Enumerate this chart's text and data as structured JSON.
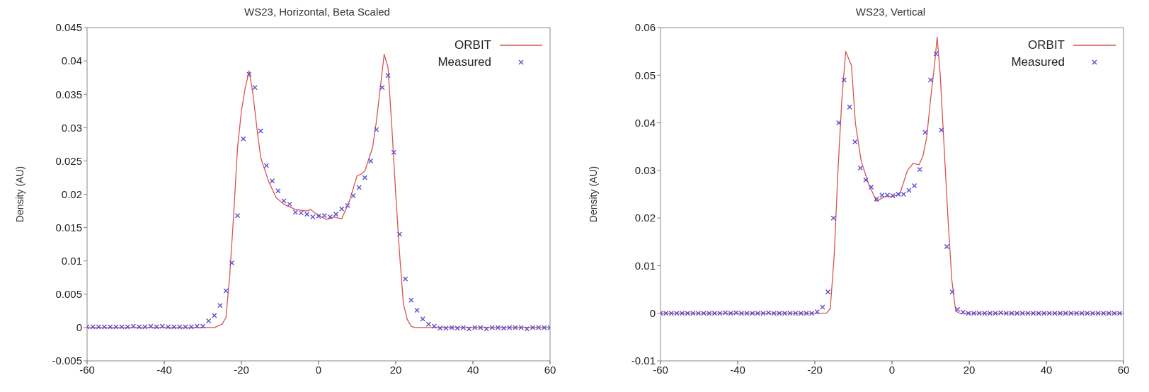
{
  "chart_data": [
    {
      "type": "line",
      "title": "WS23, Horizontal, Beta Scaled",
      "ylabel": "Density (AU)",
      "xlim": [
        -60,
        60
      ],
      "xticks": [
        -60,
        -40,
        -20,
        0,
        20,
        40,
        60
      ],
      "ylim": [
        -0.005,
        0.045
      ],
      "yticks": [
        -0.005,
        0,
        0.005,
        0.01,
        0.015,
        0.02,
        0.025,
        0.03,
        0.035,
        0.04,
        0.045
      ],
      "grid": false,
      "legend": "top right",
      "series": [
        {
          "name": "ORBIT",
          "color": "#d9534f",
          "x": [
            -60,
            -27,
            -25,
            -24,
            -23,
            -22,
            -21,
            -20,
            -19,
            -18,
            -17,
            -16,
            -15,
            -13,
            -11,
            -9,
            -6,
            -3,
            -2,
            -1,
            2,
            4,
            6,
            8,
            10,
            11,
            12,
            14,
            15,
            16,
            17,
            18,
            19,
            20,
            21,
            22,
            23,
            24,
            25,
            60
          ],
          "values": [
            0,
            0,
            0.0005,
            0.0015,
            0.008,
            0.017,
            0.027,
            0.0325,
            0.036,
            0.0385,
            0.035,
            0.03,
            0.0255,
            0.022,
            0.0195,
            0.0185,
            0.0177,
            0.0175,
            0.0177,
            0.0172,
            0.0162,
            0.0166,
            0.0163,
            0.019,
            0.0228,
            0.023,
            0.0235,
            0.027,
            0.031,
            0.036,
            0.041,
            0.039,
            0.03,
            0.02,
            0.011,
            0.0035,
            0.0012,
            0.0002,
            0,
            0
          ]
        },
        {
          "name": "Measured",
          "type": "scatter",
          "marker": "cross",
          "color": "#5b4fd0",
          "x": [
            -60,
            -58.5,
            -57,
            -55.5,
            -54,
            -52.5,
            -51,
            -49.5,
            -48,
            -46.5,
            -45,
            -43.5,
            -42,
            -40.5,
            -39,
            -37.5,
            -36,
            -34.5,
            -33,
            -31.5,
            -30,
            -28.5,
            -27,
            -25.5,
            -24,
            -22.5,
            -21,
            -19.5,
            -18,
            -16.5,
            -15,
            -13.5,
            -12,
            -10.5,
            -9,
            -7.5,
            -6,
            -4.5,
            -3,
            -1.5,
            0,
            1.5,
            3,
            4.5,
            6,
            7.5,
            9,
            10.5,
            12,
            13.5,
            15,
            16.5,
            18,
            19.5,
            21,
            22.5,
            24,
            25.5,
            27,
            28.5,
            30,
            31.5,
            33,
            34.5,
            36,
            37.5,
            39,
            40.5,
            42,
            43.5,
            45,
            46.5,
            48,
            49.5,
            51,
            52.5,
            54,
            55.5,
            57,
            58.5,
            60
          ],
          "values": [
            0.0001,
            0.0001,
            0.0001,
            0.0001,
            0.0001,
            0.0001,
            0.0001,
            0.0001,
            0.0002,
            0.0001,
            0.0001,
            0.0002,
            0.0001,
            0.0002,
            0.0001,
            0.0001,
            0.0001,
            0.0001,
            0.0001,
            0.0002,
            0.0002,
            0.001,
            0.0018,
            0.0033,
            0.0055,
            0.0097,
            0.0168,
            0.0283,
            0.038,
            0.036,
            0.0295,
            0.0243,
            0.022,
            0.0205,
            0.019,
            0.0185,
            0.0173,
            0.0172,
            0.017,
            0.0166,
            0.0167,
            0.0168,
            0.0166,
            0.017,
            0.0178,
            0.0183,
            0.0198,
            0.021,
            0.0225,
            0.025,
            0.0297,
            0.036,
            0.0378,
            0.0263,
            0.014,
            0.0073,
            0.0041,
            0.0026,
            0.0013,
            0.0005,
            0.0002,
            -0.0001,
            -0.0001,
            0,
            -0.0001,
            0,
            -0.0002,
            0,
            0,
            -0.0002,
            0,
            0,
            -0.0001,
            0,
            0,
            0,
            -0.0002,
            0,
            0,
            0,
            0
          ]
        }
      ]
    },
    {
      "type": "line",
      "title": "WS23, Vertical",
      "ylabel": "Density (AU)",
      "xlim": [
        -60,
        60
      ],
      "xticks": [
        -60,
        -40,
        -20,
        0,
        20,
        40,
        60
      ],
      "ylim": [
        -0.01,
        0.06
      ],
      "yticks": [
        -0.01,
        0,
        0.01,
        0.02,
        0.03,
        0.04,
        0.05,
        0.06
      ],
      "grid": false,
      "legend": "top right",
      "series": [
        {
          "name": "ORBIT",
          "color": "#d9534f",
          "x": [
            -60,
            -17,
            -16,
            -15,
            -14,
            -13,
            -12,
            -10.5,
            -9.5,
            -8,
            -6,
            -4,
            -2,
            0,
            2,
            4,
            5.5,
            7,
            8,
            9,
            10,
            11,
            11.7,
            12.5,
            13.5,
            14.5,
            15.5,
            16.5,
            17.5,
            60
          ],
          "values": [
            0,
            0,
            0.001,
            0.012,
            0.03,
            0.045,
            0.055,
            0.052,
            0.04,
            0.032,
            0.027,
            0.0235,
            0.0245,
            0.0245,
            0.025,
            0.03,
            0.0315,
            0.0312,
            0.033,
            0.037,
            0.045,
            0.052,
            0.058,
            0.05,
            0.035,
            0.02,
            0.007,
            0.0005,
            0,
            0
          ]
        },
        {
          "name": "Measured",
          "type": "scatter",
          "marker": "cross",
          "color": "#5b4fd0",
          "x": [
            -60,
            -58.6,
            -57.2,
            -55.8,
            -54.4,
            -53,
            -51.6,
            -50.2,
            -48.8,
            -47.4,
            -46,
            -44.6,
            -43.2,
            -41.8,
            -40.4,
            -39,
            -37.6,
            -36.2,
            -34.8,
            -33.4,
            -32,
            -30.6,
            -29.2,
            -27.8,
            -26.4,
            -25,
            -23.6,
            -22.2,
            -20.8,
            -19.4,
            -18,
            -16.6,
            -15.2,
            -13.8,
            -12.4,
            -11,
            -9.6,
            -8.2,
            -6.8,
            -5.4,
            -4,
            -2.6,
            -1.2,
            0.2,
            1.6,
            3,
            4.4,
            5.8,
            7.2,
            8.6,
            10,
            11.4,
            12.8,
            14.2,
            15.6,
            17,
            18.4,
            19.8,
            21.2,
            22.6,
            24,
            25.4,
            26.8,
            28.2,
            29.6,
            31,
            32.4,
            33.8,
            35.2,
            36.6,
            38,
            39.4,
            40.8,
            42.2,
            43.6,
            45,
            46.4,
            47.8,
            49.2,
            50.6,
            52,
            53.4,
            54.8,
            56.2,
            57.6,
            59
          ],
          "values": [
            0,
            0,
            0,
            0,
            0,
            0,
            0,
            0,
            0,
            0,
            0,
            0,
            0.0001,
            0,
            0.0001,
            0,
            0,
            0,
            0,
            0,
            0.0001,
            0,
            0,
            0,
            0,
            0,
            0,
            0,
            0,
            0.0003,
            0.0013,
            0.0045,
            0.02,
            0.04,
            0.049,
            0.0433,
            0.036,
            0.0305,
            0.028,
            0.0265,
            0.024,
            0.0248,
            0.0248,
            0.0247,
            0.025,
            0.025,
            0.0258,
            0.0268,
            0.0302,
            0.038,
            0.049,
            0.0545,
            0.0385,
            0.014,
            0.0045,
            0.0008,
            0.0002,
            0,
            0,
            0,
            0,
            0,
            0,
            0.0001,
            0,
            0,
            0,
            0,
            0,
            0,
            0,
            0,
            0,
            0,
            0,
            0,
            0,
            0,
            0,
            0,
            0,
            0,
            0,
            0,
            0,
            0
          ]
        }
      ]
    }
  ]
}
